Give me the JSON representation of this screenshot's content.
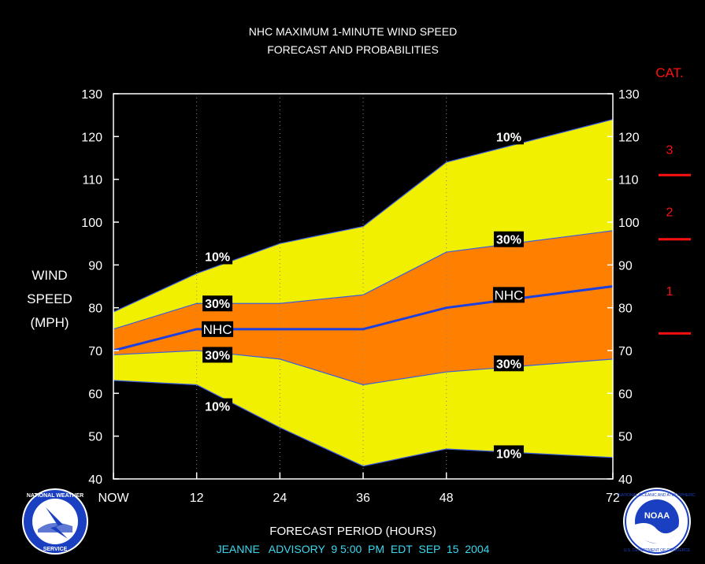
{
  "chart_data": {
    "type": "area",
    "title_line1": "NHC MAXIMUM 1-MINUTE WIND SPEED",
    "title_line2": "FORECAST AND PROBABILITIES",
    "ylabel_lines": [
      "WIND",
      "SPEED",
      "(MPH)"
    ],
    "xlabel": "FORECAST PERIOD (HOURS)",
    "advisory": "JEANNE   ADVISORY  9 5:00  PM  EDT  SEP  15  2004",
    "x_ticks": [
      {
        "x": 0,
        "label": "NOW"
      },
      {
        "x": 12,
        "label": "12"
      },
      {
        "x": 24,
        "label": "24"
      },
      {
        "x": 36,
        "label": "36"
      },
      {
        "x": 48,
        "label": "48"
      },
      {
        "x": 72,
        "label": "72"
      }
    ],
    "xlim": [
      0,
      72
    ],
    "ylim": [
      40,
      130
    ],
    "y_ticks": [
      "40",
      "50",
      "60",
      "70",
      "80",
      "90",
      "100",
      "110",
      "120",
      "130"
    ],
    "x": [
      0,
      12,
      24,
      36,
      48,
      72
    ],
    "series": [
      {
        "key": "upper10",
        "values": [
          79,
          88,
          95,
          99,
          114,
          124
        ]
      },
      {
        "key": "upper30",
        "values": [
          75,
          81,
          81,
          83,
          93,
          98
        ]
      },
      {
        "key": "nhc",
        "values": [
          70,
          75,
          75,
          75,
          80,
          85
        ]
      },
      {
        "key": "lower30",
        "values": [
          69,
          70,
          68,
          62,
          65,
          68
        ]
      },
      {
        "key": "lower10",
        "values": [
          63,
          62,
          52,
          43,
          47,
          45
        ]
      }
    ],
    "labels": [
      {
        "text": "10%",
        "x": 15,
        "y": 92
      },
      {
        "text": "30%",
        "x": 15,
        "y": 81
      },
      {
        "text": "NHC",
        "x": 15,
        "y": 75
      },
      {
        "text": "30%",
        "x": 15,
        "y": 69
      },
      {
        "text": "10%",
        "x": 15,
        "y": 57
      },
      {
        "text": "10%",
        "x": 57,
        "y": 120
      },
      {
        "text": "30%",
        "x": 57,
        "y": 96
      },
      {
        "text": "NHC",
        "x": 57,
        "y": 83
      },
      {
        "text": "30%",
        "x": 57,
        "y": 67
      },
      {
        "text": "10%",
        "x": 57,
        "y": 46
      }
    ],
    "category_title": "CAT.",
    "categories": [
      {
        "label": "3",
        "y": 117
      },
      {
        "label": "2",
        "y": 102.5
      },
      {
        "label": "1",
        "y": 84
      }
    ],
    "category_bounds": [
      111,
      96,
      74
    ],
    "colors": {
      "background": "#000000",
      "outer_band": "#f0f000",
      "inner_band": "#ff8000",
      "nhc_line": "#1c3fe0",
      "edge_line": "#3a5ee0",
      "category": "#ff1010",
      "advisory_text": "#3ad8f0",
      "text": "#ffffff"
    },
    "grid": true,
    "logos": [
      {
        "name": "nws-logo",
        "text": "NATIONAL WEATHER SERVICE"
      },
      {
        "name": "noaa-logo",
        "text": "NOAA"
      }
    ]
  }
}
